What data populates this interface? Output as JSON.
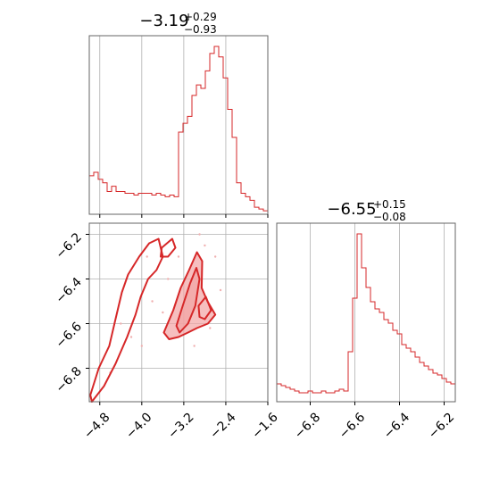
{
  "chart_data": [
    {
      "panel": "top-left",
      "type": "histogram",
      "title": {
        "median": "−3.19",
        "plus": "+0.29",
        "minus": "−0.93"
      },
      "xlim": [
        -5.0,
        -1.6
      ],
      "grid": true,
      "color": "#d62728",
      "bins": {
        "edges_start": -5.0,
        "bin_width": 0.085,
        "heights": [
          0.22,
          0.24,
          0.2,
          0.18,
          0.13,
          0.16,
          0.13,
          0.13,
          0.12,
          0.12,
          0.11,
          0.12,
          0.12,
          0.12,
          0.11,
          0.12,
          0.11,
          0.1,
          0.11,
          0.1,
          0.47,
          0.52,
          0.56,
          0.68,
          0.74,
          0.72,
          0.82,
          0.92,
          0.96,
          0.9,
          0.78,
          0.6,
          0.44,
          0.18,
          0.12,
          0.1,
          0.08,
          0.04,
          0.03,
          0.02,
          0.02,
          0.01,
          0.01,
          0.0,
          0.0
        ]
      }
    },
    {
      "panel": "bottom-right",
      "type": "histogram",
      "title": {
        "median": "−6.55",
        "plus": "+0.15",
        "minus": "−0.08"
      },
      "xlim": [
        -6.95,
        -6.15
      ],
      "xticks": [
        "−6.8",
        "−6.6",
        "−6.4",
        "−6.2"
      ],
      "xtick_values": [
        -6.8,
        -6.6,
        -6.4,
        -6.2
      ],
      "grid": true,
      "color": "#d62728",
      "bins": {
        "edges_start": -6.95,
        "bin_width": 0.02,
        "heights": [
          0.1,
          0.09,
          0.08,
          0.07,
          0.06,
          0.05,
          0.05,
          0.06,
          0.05,
          0.05,
          0.06,
          0.05,
          0.05,
          0.06,
          0.07,
          0.06,
          0.28,
          0.58,
          0.94,
          0.75,
          0.64,
          0.56,
          0.52,
          0.5,
          0.46,
          0.44,
          0.4,
          0.38,
          0.32,
          0.3,
          0.28,
          0.25,
          0.22,
          0.2,
          0.18,
          0.16,
          0.15,
          0.13,
          0.11,
          0.1,
          0.08,
          0.06,
          0.04,
          0.03,
          0.02
        ]
      }
    },
    {
      "panel": "bottom-left",
      "type": "contour",
      "xlim": [
        -5.0,
        -1.6
      ],
      "ylim": [
        -6.95,
        -6.15
      ],
      "xticks": [
        "−4.8",
        "−4.0",
        "−3.2",
        "−2.4",
        "−1.6"
      ],
      "xtick_values": [
        -4.8,
        -4.0,
        -3.2,
        -2.4,
        -1.6
      ],
      "yticks": [
        "−6.2",
        "−6.4",
        "−6.6",
        "−6.8"
      ],
      "ytick_values": [
        -6.2,
        -6.4,
        -6.6,
        -6.8
      ],
      "grid": true,
      "color": "#d62728",
      "fill_color": "#f2a4a4",
      "contours": [
        {
          "level": "outer",
          "points": [
            [
              -4.98,
              -6.92
            ],
            [
              -4.82,
              -6.8
            ],
            [
              -4.62,
              -6.7
            ],
            [
              -4.5,
              -6.58
            ],
            [
              -4.38,
              -6.46
            ],
            [
              -4.26,
              -6.38
            ],
            [
              -4.05,
              -6.3
            ],
            [
              -3.86,
              -6.24
            ],
            [
              -3.68,
              -6.22
            ],
            [
              -3.6,
              -6.3
            ],
            [
              -3.72,
              -6.36
            ],
            [
              -3.88,
              -6.4
            ],
            [
              -4.02,
              -6.48
            ],
            [
              -4.12,
              -6.56
            ],
            [
              -4.28,
              -6.66
            ],
            [
              -4.5,
              -6.78
            ],
            [
              -4.72,
              -6.88
            ],
            [
              -4.95,
              -6.95
            ]
          ]
        },
        {
          "level": "lobe",
          "points": [
            [
              -3.62,
              -6.26
            ],
            [
              -3.42,
              -6.22
            ],
            [
              -3.36,
              -6.26
            ],
            [
              -3.5,
              -6.3
            ],
            [
              -3.64,
              -6.3
            ]
          ]
        },
        {
          "level": "main-outer",
          "points": [
            [
              -3.58,
              -6.64
            ],
            [
              -3.4,
              -6.54
            ],
            [
              -3.26,
              -6.44
            ],
            [
              -3.1,
              -6.36
            ],
            [
              -2.95,
              -6.28
            ],
            [
              -2.85,
              -6.32
            ],
            [
              -2.86,
              -6.44
            ],
            [
              -2.75,
              -6.5
            ],
            [
              -2.6,
              -6.56
            ],
            [
              -2.74,
              -6.6
            ],
            [
              -2.95,
              -6.62
            ],
            [
              -3.12,
              -6.64
            ],
            [
              -3.3,
              -6.66
            ],
            [
              -3.48,
              -6.67
            ]
          ]
        },
        {
          "level": "main-inner",
          "points": [
            [
              -3.34,
              -6.61
            ],
            [
              -3.22,
              -6.52
            ],
            [
              -3.08,
              -6.42
            ],
            [
              -2.96,
              -6.35
            ],
            [
              -2.9,
              -6.4
            ],
            [
              -2.98,
              -6.52
            ],
            [
              -3.12,
              -6.6
            ],
            [
              -3.28,
              -6.64
            ]
          ]
        },
        {
          "level": "side",
          "points": [
            [
              -2.92,
              -6.52
            ],
            [
              -2.78,
              -6.48
            ],
            [
              -2.68,
              -6.54
            ],
            [
              -2.8,
              -6.58
            ],
            [
              -2.9,
              -6.57
            ]
          ]
        }
      ],
      "scatter": [
        [
          -2.9,
          -6.2
        ],
        [
          -2.6,
          -6.3
        ],
        [
          -2.7,
          -6.62
        ],
        [
          -3.0,
          -6.7
        ],
        [
          -3.5,
          -6.4
        ],
        [
          -3.8,
          -6.5
        ],
        [
          -4.2,
          -6.66
        ],
        [
          -4.6,
          -6.82
        ],
        [
          -3.3,
          -6.3
        ],
        [
          -2.5,
          -6.45
        ],
        [
          -3.9,
          -6.3
        ],
        [
          -4.4,
          -6.6
        ],
        [
          -2.8,
          -6.25
        ],
        [
          -3.6,
          -6.55
        ],
        [
          -4.0,
          -6.7
        ]
      ]
    }
  ]
}
